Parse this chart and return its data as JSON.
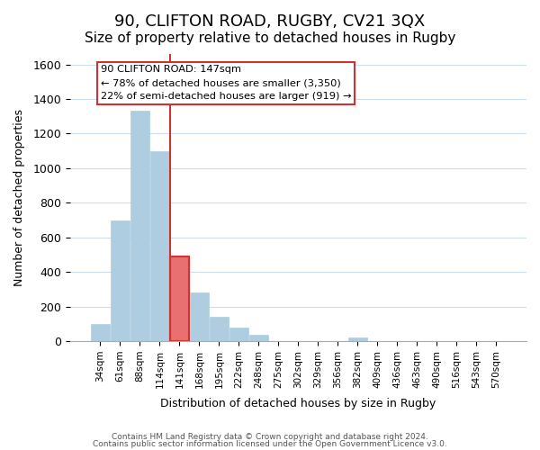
{
  "title": "90, CLIFTON ROAD, RUGBY, CV21 3QX",
  "subtitle": "Size of property relative to detached houses in Rugby",
  "xlabel": "Distribution of detached houses by size in Rugby",
  "ylabel": "Number of detached properties",
  "bar_labels": [
    "34sqm",
    "61sqm",
    "88sqm",
    "114sqm",
    "141sqm",
    "168sqm",
    "195sqm",
    "222sqm",
    "248sqm",
    "275sqm",
    "302sqm",
    "329sqm",
    "356sqm",
    "382sqm",
    "409sqm",
    "436sqm",
    "463sqm",
    "490sqm",
    "516sqm",
    "543sqm",
    "570sqm"
  ],
  "bar_values": [
    100,
    700,
    1330,
    1100,
    490,
    280,
    140,
    80,
    35,
    0,
    0,
    0,
    0,
    20,
    0,
    0,
    0,
    0,
    0,
    0,
    0
  ],
  "highlight_index": 4,
  "bar_color_normal": "#aecde0",
  "bar_color_highlight": "#e87070",
  "bar_edge_color_highlight": "#cc3333",
  "ylim": [
    0,
    1660
  ],
  "yticks": [
    0,
    200,
    400,
    600,
    800,
    1000,
    1200,
    1400,
    1600
  ],
  "annotation_title": "90 CLIFTON ROAD: 147sqm",
  "annotation_line1": "← 78% of detached houses are smaller (3,350)",
  "annotation_line2": "22% of semi-detached houses are larger (919) →",
  "annotation_box_color": "#ffffff",
  "annotation_box_edge": "#cc3333",
  "footer_line1": "Contains HM Land Registry data © Crown copyright and database right 2024.",
  "footer_line2": "Contains public sector information licensed under the Open Government Licence v3.0.",
  "background_color": "#ffffff",
  "grid_color": "#ccddee",
  "title_fontsize": 13,
  "subtitle_fontsize": 11
}
